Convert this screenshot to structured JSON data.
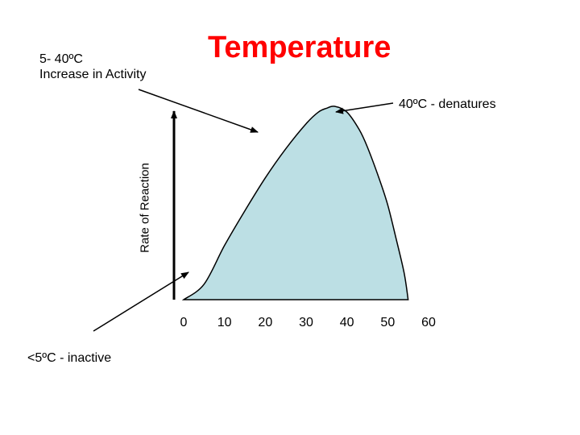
{
  "chart_data": {
    "type": "area",
    "title": "Temperature",
    "ylabel": "Rate of Reaction",
    "xlabel": "",
    "x_ticks": [
      0,
      10,
      20,
      30,
      40,
      50,
      60
    ],
    "xlim": [
      0,
      60
    ],
    "ylim": [
      0,
      1
    ],
    "series": [
      {
        "x": [
          0,
          5,
          10,
          15,
          20,
          25,
          30,
          33,
          35,
          37,
          40,
          43,
          45,
          48,
          50,
          52,
          54,
          55
        ],
        "y": [
          0,
          0.08,
          0.28,
          0.46,
          0.63,
          0.78,
          0.91,
          0.97,
          0.99,
          1.0,
          0.97,
          0.88,
          0.79,
          0.62,
          0.49,
          0.32,
          0.14,
          0
        ],
        "fill": "#bcdfe4"
      }
    ],
    "annotations": [
      {
        "text": "5- 40ºC\nIncrease in Activity",
        "line1": "5- 40ºC",
        "line2": "Increase in Activity"
      },
      {
        "text": "40ºC - denatures"
      },
      {
        "text": "<5ºC - inactive"
      }
    ]
  }
}
